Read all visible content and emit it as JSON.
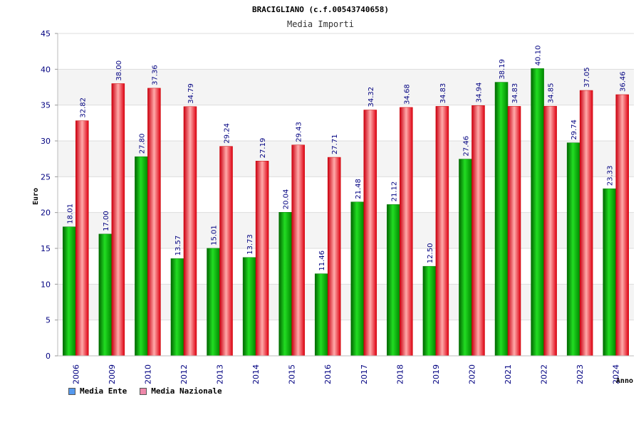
{
  "chart_data": {
    "type": "bar",
    "title": "BRACIGLIANO (c.f.00543740658)",
    "subtitle": "Media Importi",
    "xlabel": "Anno",
    "ylabel": "Euro",
    "ylim": [
      0,
      45
    ],
    "yticks": [
      0,
      5,
      10,
      15,
      20,
      25,
      30,
      35,
      40,
      45
    ],
    "grid": true,
    "legend_position": "bottom-left",
    "categories": [
      "2006",
      "2009",
      "2010",
      "2012",
      "2013",
      "2014",
      "2015",
      "2016",
      "2017",
      "2018",
      "2019",
      "2020",
      "2021",
      "2022",
      "2023",
      "2024"
    ],
    "series": [
      {
        "name": "Media Ente",
        "color": "#00aa00",
        "legend_color": "#5599ee",
        "values": [
          18.01,
          17.0,
          27.8,
          13.57,
          15.01,
          13.73,
          20.04,
          11.46,
          21.48,
          21.12,
          12.5,
          27.46,
          38.19,
          40.1,
          29.74,
          23.33
        ],
        "labels": [
          "18.01",
          "17.00",
          "27.80",
          "13.57",
          "15.01",
          "13.73",
          "20.04",
          "11.46",
          "21.48",
          "21.12",
          "12.50",
          "27.46",
          "38.19",
          "40.10",
          "29.74",
          "23.33"
        ]
      },
      {
        "name": "Media Nazionale",
        "color": "#ee1122",
        "legend_color": "#ee88aa",
        "values": [
          32.82,
          38.0,
          37.36,
          34.79,
          29.24,
          27.19,
          29.43,
          27.71,
          34.32,
          34.68,
          34.83,
          34.94,
          34.83,
          34.85,
          37.05,
          36.46
        ],
        "labels": [
          "32.82",
          "38.00",
          "37.36",
          "34.79",
          "29.24",
          "27.19",
          "29.43",
          "27.71",
          "34.32",
          "34.68",
          "34.83",
          "34.94",
          "34.83",
          "34.85",
          "37.05",
          "36.46"
        ]
      }
    ]
  }
}
